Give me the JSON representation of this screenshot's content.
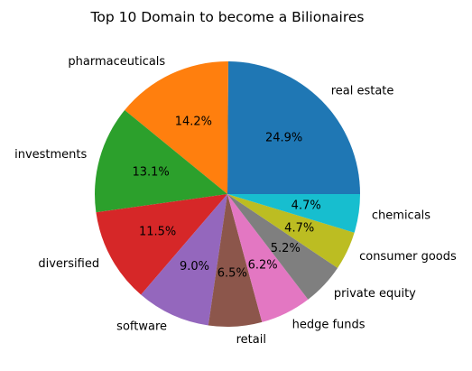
{
  "chart_data": {
    "type": "pie",
    "title": "Top 10 Domain to become a Bilionaires",
    "categories": [
      "real estate",
      "pharmaceuticals",
      "investments",
      "diversified",
      "software",
      "retail",
      "hedge funds",
      "private equity",
      "consumer goods",
      "chemicals"
    ],
    "values": [
      24.9,
      14.2,
      13.1,
      11.5,
      9.0,
      6.5,
      6.2,
      5.2,
      4.7,
      4.7
    ],
    "value_labels": [
      "24.9%",
      "14.2%",
      "13.1%",
      "11.5%",
      "9.0%",
      "6.5%",
      "6.2%",
      "5.2%",
      "4.7%",
      "4.7%"
    ],
    "colors": [
      "#1f77b4",
      "#ff7f0e",
      "#2ca02c",
      "#d62728",
      "#9467bd",
      "#8c564b",
      "#e377c2",
      "#7f7f7f",
      "#bcbd22",
      "#17becf"
    ],
    "start_angle_deg": 0,
    "direction": "counterclockwise",
    "legend": "none"
  }
}
